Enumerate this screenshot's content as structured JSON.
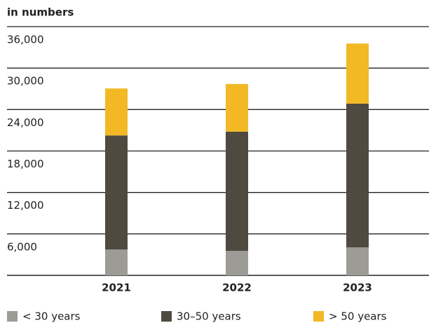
{
  "chart_data": {
    "type": "stacked_bar",
    "title": "in numbers",
    "categories": [
      "2021",
      "2022",
      "2023"
    ],
    "series": [
      {
        "name": "< 30 years",
        "color": "#9c9b95",
        "values": [
          3750,
          3550,
          4050
        ]
      },
      {
        "name": "30–50 years",
        "color": "#4f4a40",
        "values": [
          16500,
          17250,
          20800
        ]
      },
      {
        "name": "> 50 years",
        "color": "#f2b925",
        "values": [
          6800,
          6900,
          8700
        ]
      }
    ],
    "ylim": [
      0,
      36000
    ],
    "yticks": [
      {
        "value": 6000,
        "label": "6,000"
      },
      {
        "value": 12000,
        "label": "12,000"
      },
      {
        "value": 18000,
        "label": "18,000"
      },
      {
        "value": 24000,
        "label": "24,000"
      },
      {
        "value": 30000,
        "label": "30,000"
      },
      {
        "value": 36000,
        "label": "36,000"
      }
    ],
    "grid": true,
    "legend": "bottom"
  }
}
